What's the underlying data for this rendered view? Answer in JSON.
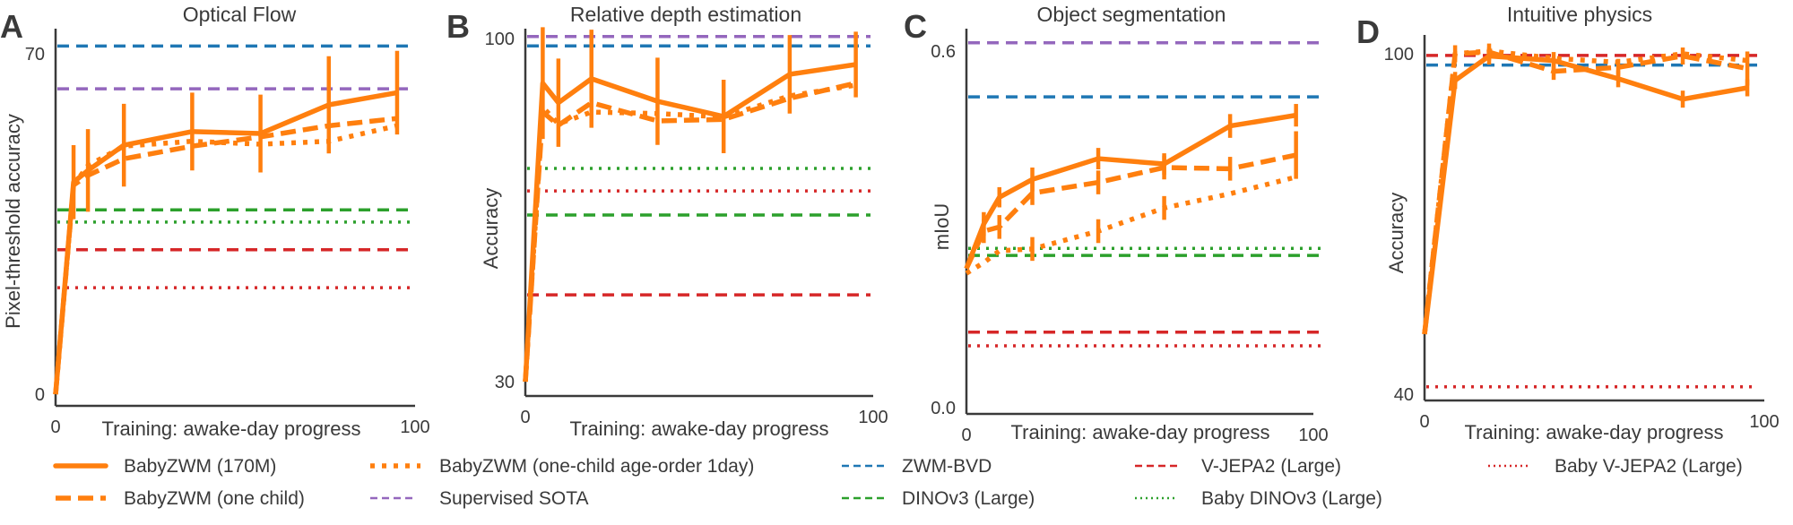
{
  "colors": {
    "babyzwm": "#ff7f0e",
    "zwm_bvd": "#1f77b4",
    "supervised_sota": "#9467bd",
    "dinov3": "#2ca02c",
    "vjepa2": "#d62728"
  },
  "legend": [
    {
      "label": "BabyZWM (170M)",
      "color": "#ff7f0e",
      "style": "solid"
    },
    {
      "label": "BabyZWM (one child)",
      "color": "#ff7f0e",
      "style": "dashed"
    },
    {
      "label": "BabyZWM (one-child age-order 1day)",
      "color": "#ff7f0e",
      "style": "dotted"
    },
    {
      "label": "Supervised SOTA",
      "color": "#9467bd",
      "style": "dashed"
    },
    {
      "label": "ZWM-BVD",
      "color": "#1f77b4",
      "style": "dashed"
    },
    {
      "label": "DINOv3 (Large)",
      "color": "#2ca02c",
      "style": "dashed"
    },
    {
      "label": "V-JEPA2 (Large)",
      "color": "#d62728",
      "style": "dashed"
    },
    {
      "label": "Baby DINOv3 (Large)",
      "color": "#2ca02c",
      "style": "dotted"
    },
    {
      "label": "Baby V-JEPA2 (Large)",
      "color": "#d62728",
      "style": "dotted"
    }
  ],
  "chart_data": [
    {
      "panel": "A",
      "type": "line",
      "title": "Optical Flow",
      "xlabel": "Training: awake-day progress",
      "ylabel": "Pixel-threshold accuracy",
      "xlim": [
        0,
        100
      ],
      "xticks": [
        "0",
        "100"
      ],
      "ylim": [
        0,
        70
      ],
      "yticks": [
        "0",
        "70"
      ],
      "x": [
        0,
        5,
        9,
        19,
        38,
        57,
        76,
        95
      ],
      "series": [
        {
          "name": "BabyZWM (170M)",
          "style": "solid",
          "values": [
            0,
            43.6,
            46,
            51.2,
            54,
            53.6,
            59.5,
            62
          ],
          "errors": [
            0,
            7.6,
            8.5,
            8.5,
            8,
            8,
            10,
            8.6
          ]
        },
        {
          "name": "BabyZWM (one child)",
          "style": "dashed",
          "values": [
            0,
            43,
            45,
            48.4,
            51,
            52.9,
            55.2,
            56.7
          ],
          "errors": null
        },
        {
          "name": "BabyZWM (one-child age-order 1day)",
          "style": "dotted",
          "values": [
            0,
            43,
            47,
            51,
            52,
            51.4,
            52,
            55.2
          ],
          "errors": null
        }
      ],
      "baselines": [
        {
          "name": "ZWM-BVD",
          "value": 71.6
        },
        {
          "name": "Supervised SOTA",
          "value": 62.8
        },
        {
          "name": "DINOv3 (Large)",
          "value": 37.9
        },
        {
          "name": "Baby DINOv3 (Large)",
          "value": 35.4
        },
        {
          "name": "V-JEPA2 (Large)",
          "value": 29.7
        },
        {
          "name": "Baby V-JEPA2 (Large)",
          "value": 21.9
        }
      ]
    },
    {
      "panel": "B",
      "type": "line",
      "title": "Relative depth estimation",
      "xlabel": "Training: awake-day progress",
      "ylabel": "Accuracy",
      "xlim": [
        0,
        100
      ],
      "xticks": [
        "0",
        "100"
      ],
      "ylim": [
        30,
        100
      ],
      "yticks": [
        "30",
        "100"
      ],
      "x": [
        0,
        5,
        9.5,
        19,
        38,
        57,
        76,
        95
      ],
      "series": [
        {
          "name": "BabyZWM (170M)",
          "style": "solid",
          "values": [
            30,
            90.9,
            86.9,
            91.8,
            87.2,
            84.1,
            92.7,
            94.7
          ],
          "errors": [
            0,
            11.4,
            9,
            10,
            8.9,
            7.5,
            8,
            6.7
          ]
        },
        {
          "name": "BabyZWM (one child)",
          "style": "dashed",
          "values": [
            30,
            85,
            82.3,
            86.9,
            83.2,
            83.5,
            87.8,
            90.9
          ],
          "errors": null
        },
        {
          "name": "BabyZWM (one-child age-order 1day)",
          "style": "dotted",
          "values": [
            30,
            86,
            82.6,
            85,
            84.7,
            84,
            88.3,
            90.5
          ],
          "errors": null
        }
      ],
      "baselines": [
        {
          "name": "Supervised SOTA",
          "value": 100.4
        },
        {
          "name": "ZWM-BVD",
          "value": 98.5
        },
        {
          "name": "Baby DINOv3 (Large)",
          "value": 73.5
        },
        {
          "name": "Baby V-JEPA2 (Large)",
          "value": 68.9
        },
        {
          "name": "DINOv3 (Large)",
          "value": 64
        },
        {
          "name": "V-JEPA2 (Large)",
          "value": 47.7
        }
      ]
    },
    {
      "panel": "C",
      "type": "line",
      "title": "Object segmentation",
      "xlabel": "Training: awake-day progress",
      "ylabel": "mIoU",
      "xlim": [
        0,
        100
      ],
      "xticks": [
        "0",
        "100"
      ],
      "ylim": [
        0.0,
        0.6
      ],
      "yticks": [
        "0.0",
        "0.6"
      ],
      "x": [
        0,
        5,
        9.5,
        19,
        38,
        57,
        76,
        95
      ],
      "series": [
        {
          "name": "BabyZWM (170M)",
          "style": "solid",
          "values": [
            0.234,
            0.309,
            0.354,
            0.384,
            0.419,
            0.41,
            0.474,
            0.492
          ],
          "errors": [
            0,
            0.02,
            0.017,
            0.02,
            0.018,
            0.018,
            0.02,
            0.019
          ]
        },
        {
          "name": "BabyZWM (one child)",
          "style": "dashed",
          "values": [
            0.234,
            0.297,
            0.304,
            0.361,
            0.379,
            0.404,
            0.402,
            0.425
          ],
          "errors": [
            0,
            0.02,
            0.02,
            0.02,
            0.02,
            0.02,
            0.02,
            0.04
          ]
        },
        {
          "name": "BabyZWM (one-child age-order 1day)",
          "style": "dotted",
          "values": [
            0.226,
            0.244,
            0.264,
            0.267,
            0.297,
            0.336,
            0.36,
            0.388
          ],
          "errors": [
            0,
            0,
            0,
            0.02,
            0.02,
            0.02,
            0,
            0
          ]
        }
      ],
      "baselines": [
        {
          "name": "Supervised SOTA",
          "value": 0.614
        },
        {
          "name": "ZWM-BVD",
          "value": 0.523
        },
        {
          "name": "Baby DINOv3 (Large)",
          "value": 0.268
        },
        {
          "name": "DINOv3 (Large)",
          "value": 0.256
        },
        {
          "name": "V-JEPA2 (Large)",
          "value": 0.127
        },
        {
          "name": "Baby V-JEPA2 (Large)",
          "value": 0.104
        }
      ]
    },
    {
      "panel": "D",
      "type": "line",
      "title": "Intuitive physics",
      "xlabel": "Training: awake-day progress",
      "ylabel": "Accuracy",
      "xlim": [
        0,
        100
      ],
      "xticks": [
        "0",
        "100"
      ],
      "ylim": [
        40,
        100
      ],
      "yticks": [
        "40",
        "100"
      ],
      "x": [
        0,
        9,
        19,
        38,
        57,
        76,
        95
      ],
      "series": [
        {
          "name": "BabyZWM (170M)",
          "style": "solid",
          "values": [
            50.6,
            95.3,
            99.6,
            98.8,
            95.6,
            92,
            94
          ],
          "errors": [
            0,
            1.5,
            1.5,
            1.5,
            1.5,
            1.5,
            1.5
          ]
        },
        {
          "name": "BabyZWM (one child)",
          "style": "dashed",
          "values": [
            50.6,
            100,
            100.3,
            96.9,
            97.6,
            99.6,
            97.4
          ],
          "errors": [
            0,
            1.5,
            1.5,
            1.5,
            1.5,
            1.5,
            3
          ]
        },
        {
          "name": "BabyZWM (one-child age-order 1day)",
          "style": "dotted",
          "values": [
            50.6,
            100,
            100.5,
            99.2,
            98.5,
            100,
            98.8
          ],
          "errors": null
        }
      ],
      "baselines": [
        {
          "name": "V-JEPA2 (Large)",
          "value": 99.7
        },
        {
          "name": "ZWM-BVD",
          "value": 98
        },
        {
          "name": "Baby V-JEPA2 (Large)",
          "value": 41.3
        }
      ]
    }
  ]
}
